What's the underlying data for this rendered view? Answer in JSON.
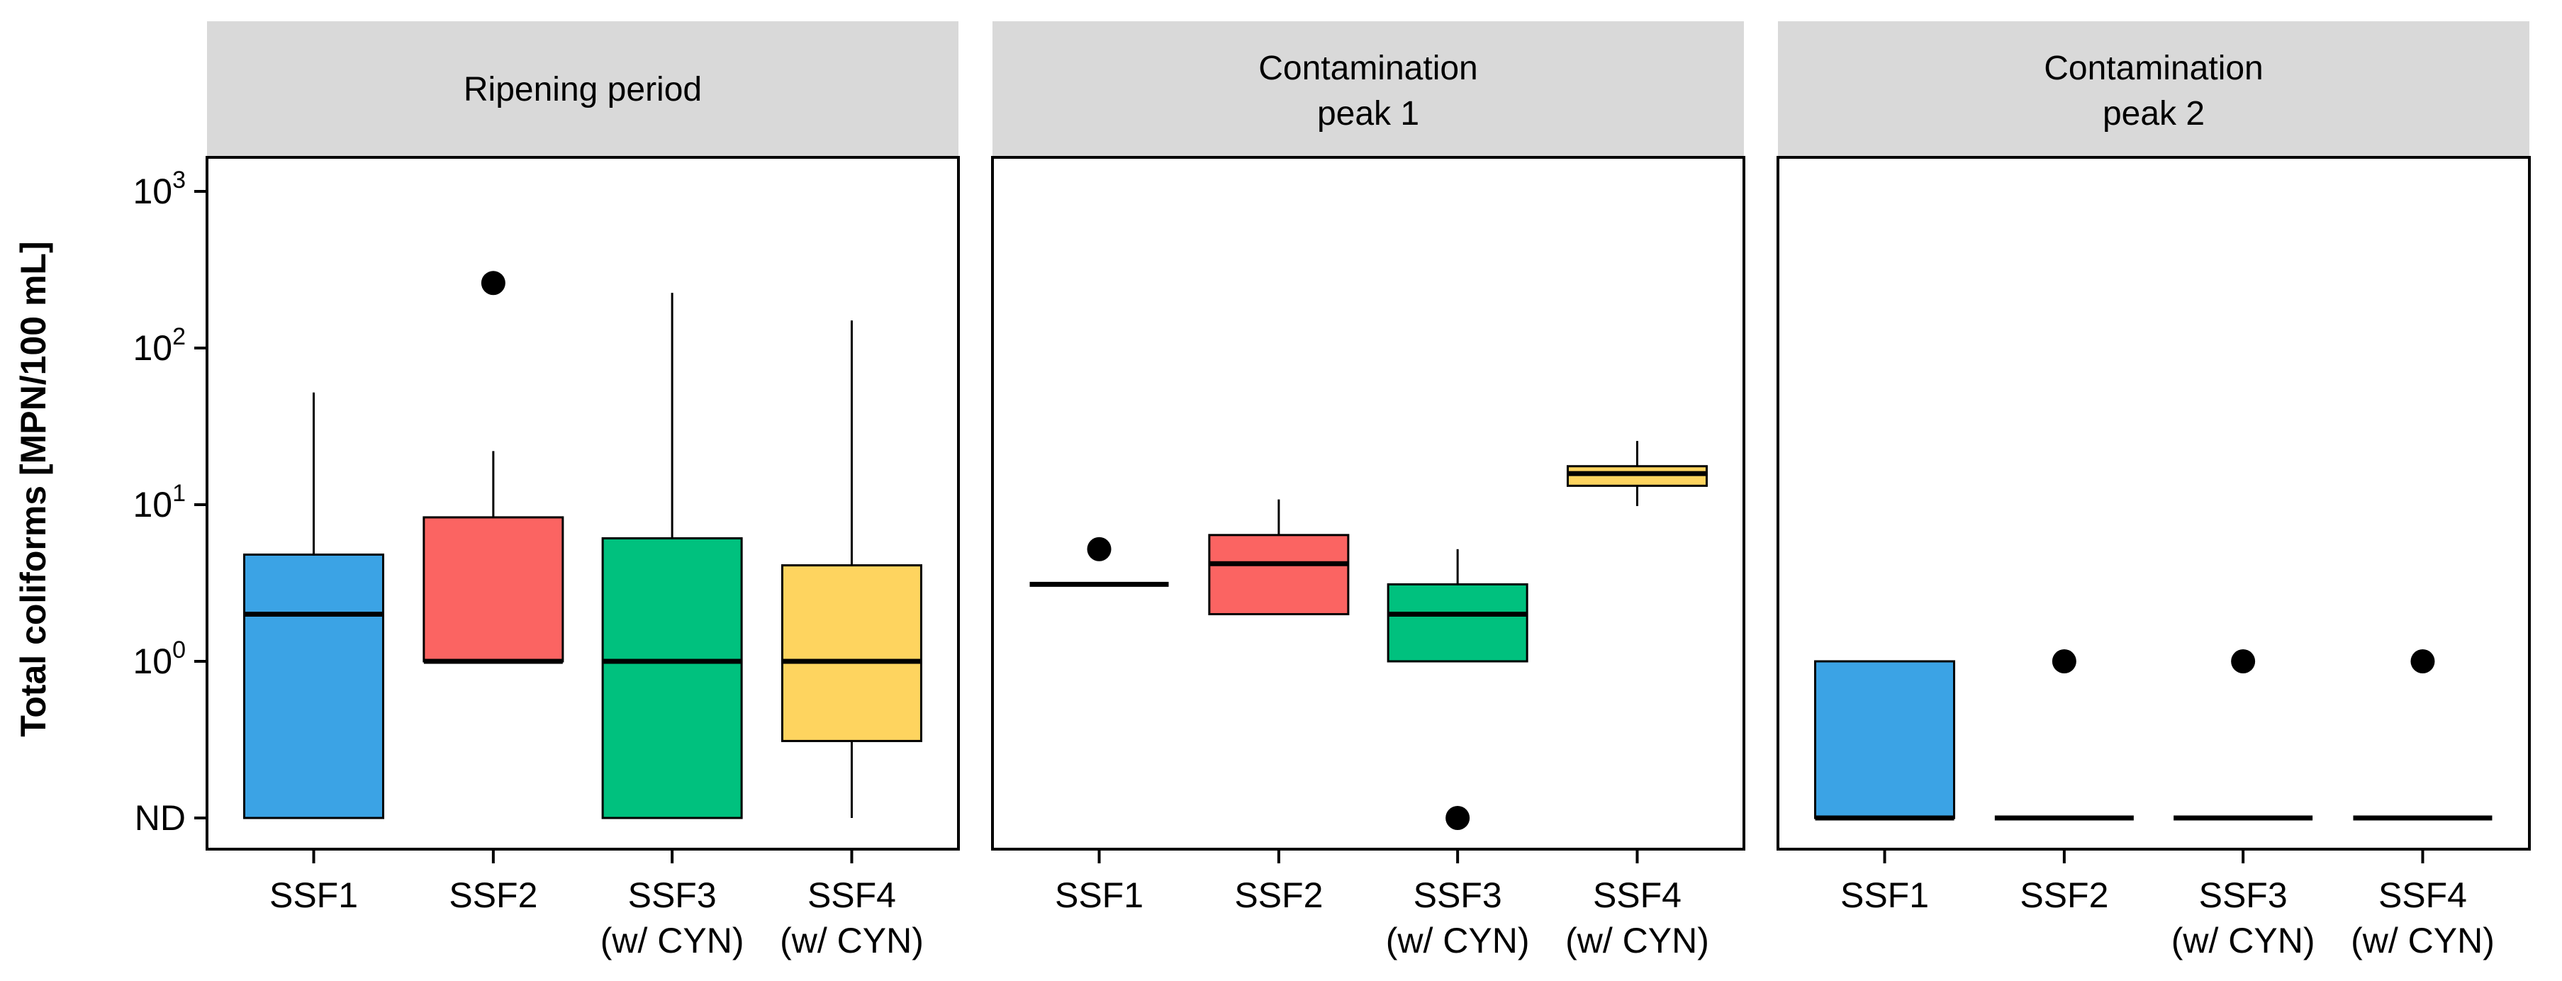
{
  "chart_data": {
    "type": "boxplot",
    "ylabel": "Total coliforms [MPN/100 mL]",
    "yscale": "log10",
    "ND_label": "ND",
    "ND_value": 0.1,
    "ylim": [
      0.07,
      1500
    ],
    "ytick_base": "10",
    "yticks": [
      {
        "value": 1000,
        "exp": "3"
      },
      {
        "value": 100,
        "exp": "2"
      },
      {
        "value": 10,
        "exp": "1"
      },
      {
        "value": 1,
        "exp": "0"
      }
    ],
    "categories": [
      {
        "line1": "SSF1",
        "line2": ""
      },
      {
        "line1": "SSF2",
        "line2": ""
      },
      {
        "line1": "SSF3",
        "line2": "(w/ CYN)"
      },
      {
        "line1": "SSF4",
        "line2": "(w/ CYN)"
      }
    ],
    "colors": [
      "#3ba3e5",
      "#fb6462",
      "#00c17e",
      "#fed45f"
    ],
    "panels": [
      {
        "title": [
          "Ripening period"
        ],
        "boxes": [
          {
            "min": 0.1,
            "q1": 0.1,
            "median": 2,
            "q3": 4.8,
            "max": 52,
            "outliers": []
          },
          {
            "min": 1,
            "q1": 1,
            "median": 1,
            "q3": 8.3,
            "max": 22,
            "outliers": [
              260
            ]
          },
          {
            "min": 0.1,
            "q1": 0.1,
            "median": 1,
            "q3": 6.1,
            "max": 225,
            "outliers": []
          },
          {
            "min": 0.1,
            "q1": 0.31,
            "median": 1,
            "q3": 4.1,
            "max": 150,
            "outliers": []
          }
        ]
      },
      {
        "title": [
          "Contamination",
          "peak 1"
        ],
        "boxes": [
          {
            "min": 3.1,
            "q1": 3.1,
            "median": 3.1,
            "q3": 3.1,
            "max": 3.1,
            "outliers": [
              5.2
            ]
          },
          {
            "min": 2,
            "q1": 2,
            "median": 4.2,
            "q3": 6.4,
            "max": 10.8,
            "outliers": []
          },
          {
            "min": 1,
            "q1": 1,
            "median": 2,
            "q3": 3.1,
            "max": 5.2,
            "outliers": [
              0.1
            ]
          },
          {
            "min": 9.8,
            "q1": 13.2,
            "median": 15.8,
            "q3": 17.6,
            "max": 25.5,
            "outliers": []
          }
        ]
      },
      {
        "title": [
          "Contamination",
          "peak 2"
        ],
        "boxes": [
          {
            "min": 0.1,
            "q1": 0.1,
            "median": 0.1,
            "q3": 1,
            "max": 1,
            "outliers": []
          },
          {
            "min": 0.1,
            "q1": 0.1,
            "median": 0.1,
            "q3": 0.1,
            "max": 0.1,
            "outliers": [
              1
            ]
          },
          {
            "min": 0.1,
            "q1": 0.1,
            "median": 0.1,
            "q3": 0.1,
            "max": 0.1,
            "outliers": [
              1
            ]
          },
          {
            "min": 0.1,
            "q1": 0.1,
            "median": 0.1,
            "q3": 0.1,
            "max": 0.1,
            "outliers": [
              1
            ]
          }
        ]
      }
    ]
  }
}
